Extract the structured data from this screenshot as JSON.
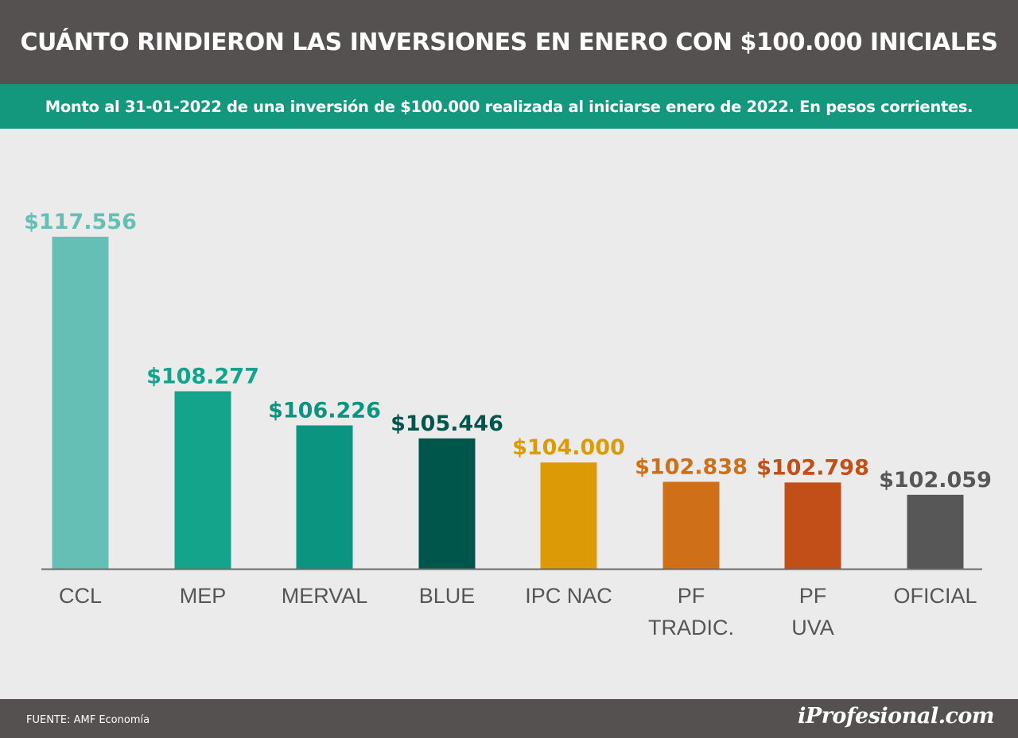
{
  "header": {
    "title": "CUÁNTO RINDIERON LAS INVERSIONES EN ENERO CON $100.000 INICIALES",
    "subtitle": "Monto al 31-01-2022 de una inversión de $100.000 realizada al iniciarse enero de 2022. En pesos corrientes."
  },
  "footer": {
    "source": "FUENTE: AMF Economía",
    "brand": "iProfesional.com"
  },
  "chart_data": {
    "type": "bar",
    "categories": [
      [
        "CCL"
      ],
      [
        "MEP"
      ],
      [
        "MERVAL"
      ],
      [
        "BLUE"
      ],
      [
        "IPC NAC"
      ],
      [
        "PF",
        "TRADIC."
      ],
      [
        "PF",
        "UVA"
      ],
      [
        "OFICIAL"
      ]
    ],
    "values": [
      117556,
      108277,
      106226,
      105446,
      104000,
      102838,
      102798,
      102059
    ],
    "value_labels": [
      "$117.556",
      "$108.277",
      "$106.226",
      "$105.446",
      "$104.000",
      "$102.838",
      "$102.798",
      "$102.059"
    ],
    "colors": [
      "#65bfb5",
      "#14a38b",
      "#0b9480",
      "#00564a",
      "#dc9a07",
      "#cf6f17",
      "#c34f18",
      "#575757"
    ],
    "label_colors": [
      "#65bfb5",
      "#14a38b",
      "#0b9480",
      "#00564a",
      "#dc9a07",
      "#cf6f17",
      "#c34f18",
      "#575757"
    ],
    "ylim": [
      0,
      117556
    ],
    "grid": false,
    "legend": "none"
  }
}
